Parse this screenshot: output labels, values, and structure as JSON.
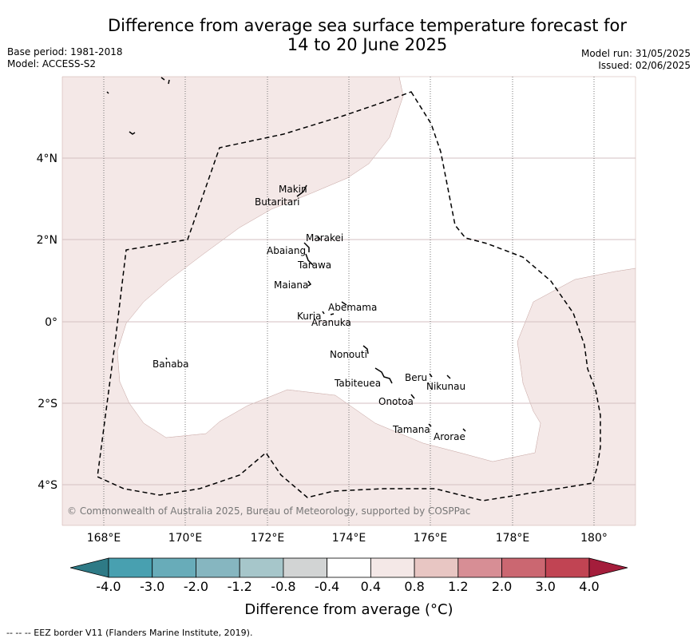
{
  "title_line1": "Difference from average sea surface temperature forecast for",
  "title_line2": "14 to 20 June 2025",
  "base_period": "Base period: 1981-2018",
  "model": "Model: ACCESS-S2",
  "model_run": "Model run: 31/05/2025",
  "issued": "Issued: 02/06/2025",
  "lon_labels": [
    "168°E",
    "170°E",
    "172°E",
    "174°E",
    "176°E",
    "178°E",
    "180°"
  ],
  "lat_labels": [
    "4°N",
    "2°N",
    "0°",
    "2°S",
    "4°S"
  ],
  "places": {
    "makin": "Makin",
    "butaritari": "Butaritari",
    "marakei": "Marakei",
    "abaiang": "Abaiang",
    "tarawa": "Tarawa",
    "maiana": "Maiana",
    "abemama": "Abemama",
    "kuria": "Kuria",
    "aranuka": "Aranuka",
    "nonouti": "Nonouti",
    "banaba": "Banaba",
    "tabiteuea": "Tabiteuea",
    "beru": "Beru",
    "nikunau": "Nikunau",
    "onotoa": "Onotoa",
    "tamana": "Tamana",
    "arorae": "Arorae"
  },
  "copyright": "© Commonwealth of Australia 2025, Bureau of Meteorology, supported by COSPPac",
  "colorbar": {
    "labels": [
      "-4.0",
      "-3.0",
      "-2.0",
      "-1.2",
      "-0.8",
      "-0.4",
      "0.4",
      "0.8",
      "1.2",
      "2.0",
      "3.0",
      "4.0"
    ],
    "colors": [
      "#2e7a86",
      "#48a0b0",
      "#68acb9",
      "#86b6c0",
      "#a6c6ca",
      "#d2d4d4",
      "#ffffff",
      "#f4e8e7",
      "#e8c6c3",
      "#d78e95",
      "#cb6771",
      "#c14453",
      "#a41d3b"
    ],
    "title": "Difference from average (°C)"
  },
  "map_colors": {
    "anomaly_0p4_0p8": "#f4e8e7",
    "neutral": "#ffffff"
  },
  "footer": "--  --  -- EEZ border V11 (Flanders Marine Institute, 2019)."
}
